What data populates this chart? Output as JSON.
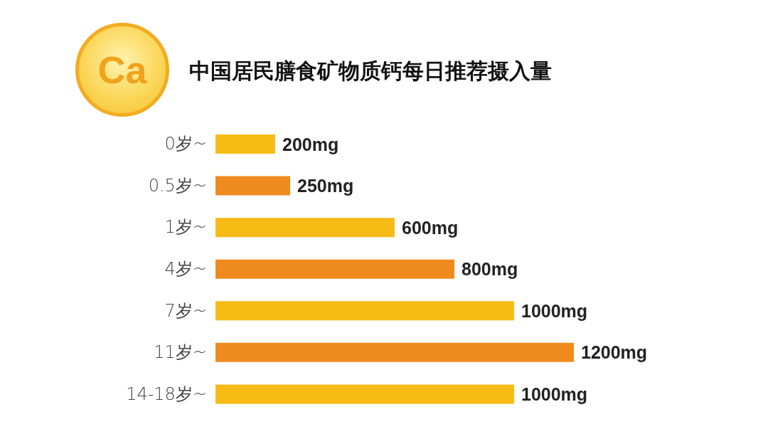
{
  "chart_data": {
    "type": "bar",
    "orientation": "horizontal",
    "title": "中国居民膳食矿物质钙每日推荐摄入量",
    "categories": [
      "0岁~",
      "0.5岁~",
      "1岁~",
      "4岁~",
      "7岁~",
      "11岁~",
      "14-18岁~"
    ],
    "values": [
      200,
      250,
      600,
      800,
      1000,
      1200,
      1000
    ],
    "colors": [
      "#f7bb16",
      "#ef8b1e",
      "#f7bb16",
      "#ef8b1e",
      "#f7bb16",
      "#ef8b1e",
      "#f7bb16"
    ],
    "value_labels": [
      "200mg",
      "250mg",
      "600mg",
      "800mg",
      "1000mg",
      "1200mg",
      "1000mg"
    ],
    "tick_labels": "y",
    "annotations": [
      "Ca"
    ]
  }
}
